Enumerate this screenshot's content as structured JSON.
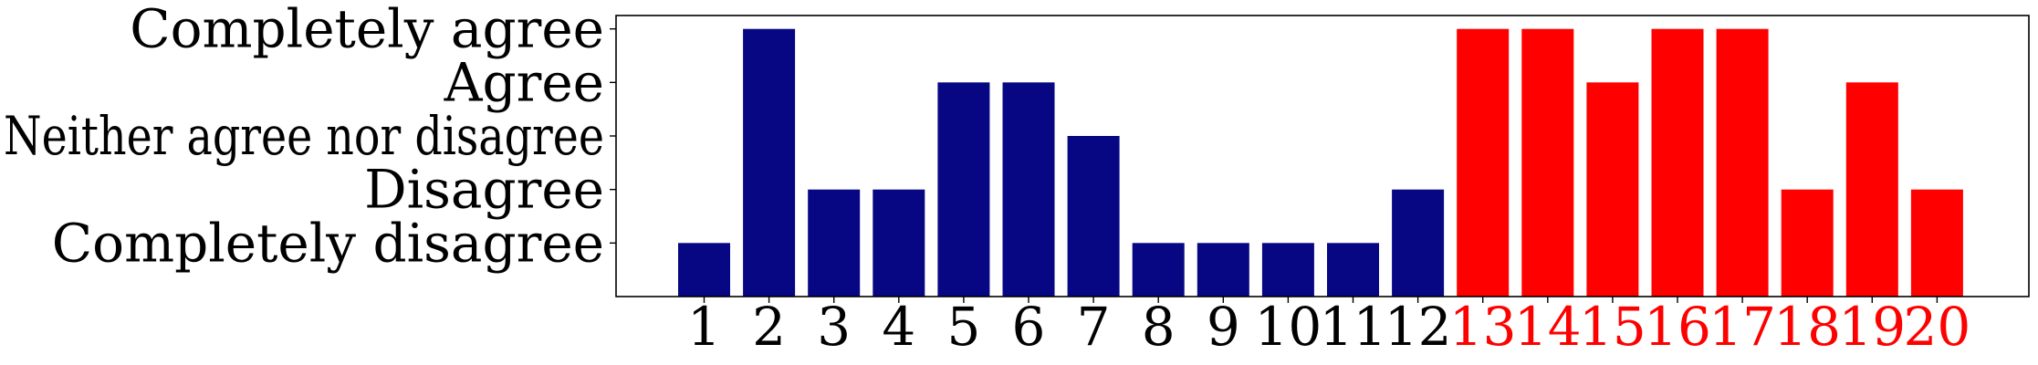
{
  "chart_data": {
    "type": "bar",
    "categories": [
      "1",
      "2",
      "3",
      "4",
      "5",
      "6",
      "7",
      "8",
      "9",
      "10",
      "11",
      "12",
      "13",
      "14",
      "15",
      "16",
      "17",
      "18",
      "19",
      "20"
    ],
    "values": [
      1,
      5,
      2,
      2,
      4,
      4,
      3,
      1,
      1,
      1,
      1,
      2,
      5,
      5,
      4,
      5,
      5,
      2,
      4,
      2
    ],
    "ylim": [
      0,
      5.25
    ],
    "yticks": [
      {
        "value": 1,
        "label": "Completely disagree"
      },
      {
        "value": 2,
        "label": "Disagree"
      },
      {
        "value": 3,
        "label": "Neither agree nor disagree"
      },
      {
        "value": 4,
        "label": "Agree"
      },
      {
        "value": 5,
        "label": "Completely agree"
      }
    ],
    "groups": [
      {
        "from": 1,
        "to": 12,
        "bar_color": "#070783",
        "label_color": "#000000"
      },
      {
        "from": 13,
        "to": 20,
        "bar_color": "#ff0000",
        "label_color": "#ff0000"
      }
    ],
    "grid": false,
    "legend": "none"
  }
}
